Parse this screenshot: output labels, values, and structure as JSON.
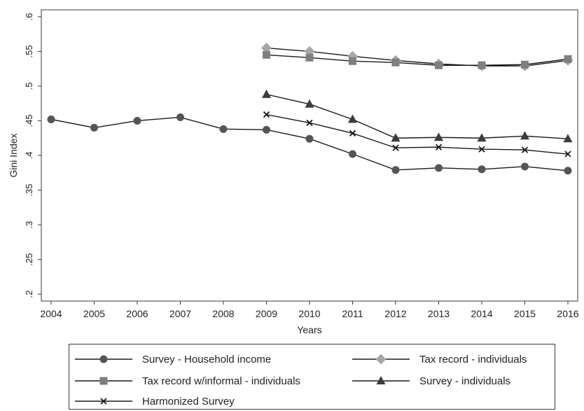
{
  "chart_data": {
    "type": "line",
    "title": "",
    "xlabel": "Years",
    "ylabel": "Gini Index",
    "x": [
      2004,
      2005,
      2006,
      2007,
      2008,
      2009,
      2010,
      2011,
      2012,
      2013,
      2014,
      2015,
      2016
    ],
    "xticks": [
      "2004",
      "2005",
      "2006",
      "2007",
      "2008",
      "2009",
      "2010",
      "2011",
      "2012",
      "2013",
      "2014",
      "2015",
      "2016"
    ],
    "ylim": [
      0.19,
      0.61
    ],
    "yticks": [
      {
        "value": 0.2,
        "label": ".2"
      },
      {
        "value": 0.25,
        "label": ".25"
      },
      {
        "value": 0.3,
        "label": ".3"
      },
      {
        "value": 0.35,
        "label": ".35"
      },
      {
        "value": 0.4,
        "label": ".4"
      },
      {
        "value": 0.45,
        "label": ".45"
      },
      {
        "value": 0.5,
        "label": ".5"
      },
      {
        "value": 0.55,
        "label": ".55"
      },
      {
        "value": 0.6,
        "label": ".6"
      }
    ],
    "grid": false,
    "legend_position": "bottom",
    "series": [
      {
        "name": "Survey - Household income",
        "marker": "circle",
        "color": "#555555",
        "x": [
          2004,
          2005,
          2006,
          2007,
          2008,
          2009,
          2010,
          2011,
          2012,
          2013,
          2014,
          2015,
          2016
        ],
        "values": [
          0.452,
          0.44,
          0.45,
          0.455,
          0.438,
          0.437,
          0.424,
          0.402,
          0.379,
          0.382,
          0.38,
          0.384,
          0.378
        ]
      },
      {
        "name": "Tax record - individuals",
        "marker": "diamond",
        "color": "#a6a6a6",
        "x": [
          2009,
          2010,
          2011,
          2012,
          2013,
          2014,
          2015,
          2016
        ],
        "values": [
          0.555,
          0.55,
          0.543,
          0.537,
          0.532,
          0.529,
          0.529,
          0.537
        ]
      },
      {
        "name": "Tax record w/informal - individuals",
        "marker": "square",
        "color": "#7f7f7f",
        "x": [
          2009,
          2010,
          2011,
          2012,
          2013,
          2014,
          2015,
          2016
        ],
        "values": [
          0.545,
          0.541,
          0.536,
          0.534,
          0.53,
          0.53,
          0.531,
          0.539
        ]
      },
      {
        "name": "Survey - individuals",
        "marker": "triangle",
        "color": "#3c3c3c",
        "x": [
          2009,
          2010,
          2011,
          2012,
          2013,
          2014,
          2015,
          2016
        ],
        "values": [
          0.488,
          0.474,
          0.452,
          0.425,
          0.426,
          0.425,
          0.428,
          0.424
        ]
      },
      {
        "name": "Harmonized Survey",
        "marker": "x",
        "color": "#1a1a1a",
        "x": [
          2009,
          2010,
          2011,
          2012,
          2013,
          2014,
          2015,
          2016
        ],
        "values": [
          0.459,
          0.447,
          0.432,
          0.411,
          0.412,
          0.409,
          0.408,
          0.402
        ]
      }
    ]
  }
}
